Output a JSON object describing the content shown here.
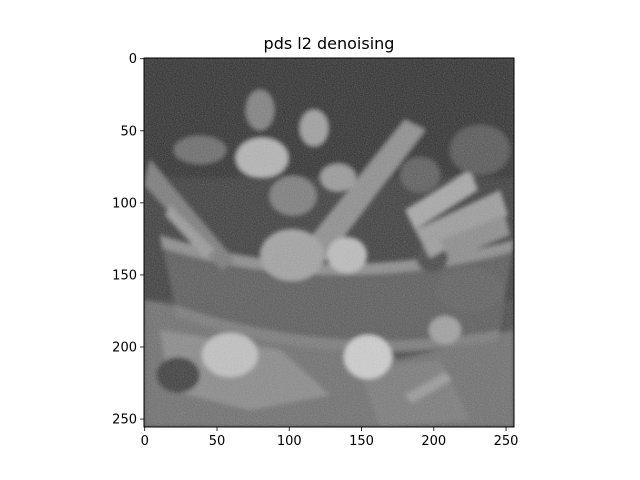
{
  "title": "pds l2 denoising",
  "image": {
    "description_kind": "grayscale denoised photograph",
    "colormap": "gray",
    "pixel_size": [
      256,
      256
    ]
  },
  "axes": {
    "x_ticks": [
      0,
      50,
      100,
      150,
      200,
      250
    ],
    "y_ticks": [
      0,
      50,
      100,
      150,
      200,
      250
    ],
    "xlim": [
      -0.5,
      255.5
    ],
    "ylim": [
      255.5,
      -0.5
    ]
  },
  "colors": {
    "frame": "#000000",
    "background": "#ffffff"
  }
}
